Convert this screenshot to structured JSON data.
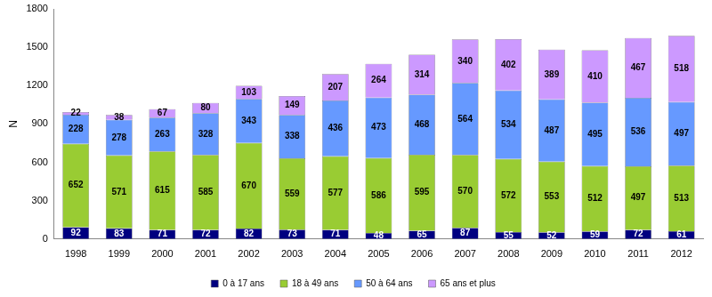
{
  "chart_data": {
    "type": "bar",
    "stacked": true,
    "data_labels": true,
    "grid": false,
    "legend": "bottom",
    "y_label": "N",
    "categories": [
      "1998",
      "1999",
      "2000",
      "2001",
      "2002",
      "2003",
      "2004",
      "2005",
      "2006",
      "2007",
      "2008",
      "2009",
      "2010",
      "2011",
      "2012"
    ],
    "ylim": [
      0,
      1800
    ],
    "yticks": [
      0,
      300,
      600,
      900,
      1200,
      1500,
      1800
    ],
    "series": [
      {
        "name": "0 à 17 ans",
        "color": "#000080",
        "values": [
          92,
          83,
          71,
          72,
          82,
          73,
          71,
          48,
          65,
          87,
          55,
          52,
          59,
          72,
          61
        ]
      },
      {
        "name": "18 à 49 ans",
        "color": "#99cc33",
        "values": [
          652,
          571,
          615,
          585,
          670,
          559,
          577,
          586,
          595,
          570,
          572,
          553,
          512,
          497,
          513
        ]
      },
      {
        "name": "50 à 64 ans",
        "color": "#6699ff",
        "values": [
          228,
          278,
          263,
          328,
          343,
          338,
          436,
          473,
          468,
          564,
          534,
          487,
          495,
          536,
          497
        ]
      },
      {
        "name": "65 ans et plus",
        "color": "#cc99ff",
        "values": [
          22,
          38,
          67,
          80,
          103,
          149,
          207,
          264,
          314,
          340,
          402,
          389,
          410,
          467,
          518
        ]
      }
    ]
  }
}
